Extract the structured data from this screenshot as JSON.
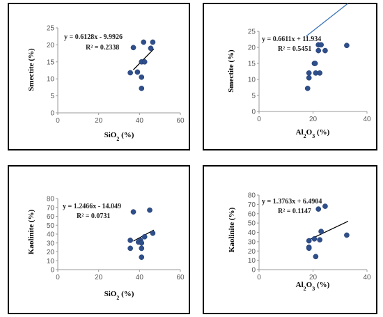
{
  "colors": {
    "marker_primary": "#3b6ab5",
    "marker_dark": "#1f3a6e",
    "trend_blue": "#3a73b8",
    "trend_black": "#000000"
  },
  "chart_data": [
    {
      "type": "scatter",
      "ylabel": "Smectite (%)",
      "xlabel": "SiO2 (%)",
      "xlim": [
        0,
        60
      ],
      "xticks": [
        0,
        20,
        40,
        60
      ],
      "ylim": [
        0,
        25
      ],
      "yticks": [
        0,
        5,
        10,
        15,
        20,
        25
      ],
      "trendline": {
        "slope": 0.6128,
        "intercept": -9.9926,
        "x_range": [
          37,
          47
        ]
      },
      "equation": "y = 0.6128x - 9.9926",
      "r2": "R² = 0.2338",
      "points": [
        [
          37,
          19.2
        ],
        [
          42,
          20.8
        ],
        [
          46.5,
          20.8
        ],
        [
          45.5,
          19
        ],
        [
          41,
          15
        ],
        [
          42.5,
          15
        ],
        [
          39,
          12
        ],
        [
          35.5,
          11.8
        ],
        [
          41,
          10.5
        ],
        [
          41,
          7.2
        ]
      ]
    },
    {
      "type": "scatter",
      "ylabel": "Smectite (%)",
      "xlabel": "Al2O3 (%)",
      "xlim": [
        0,
        40
      ],
      "xticks": [
        0,
        20,
        40
      ],
      "ylim": [
        0,
        25
      ],
      "yticks": [
        0,
        5,
        10,
        15,
        20,
        25
      ],
      "trendline": {
        "slope": 0.6611,
        "intercept": 11.934,
        "x_range": [
          17.5,
          33
        ]
      },
      "equation": "y = 0.6611x + 11.934",
      "r2": "R² = 0.5451",
      "points": [
        [
          22,
          20.8
        ],
        [
          23,
          20.8
        ],
        [
          32.5,
          20.6
        ],
        [
          24.5,
          19
        ],
        [
          22,
          19
        ],
        [
          20.5,
          15
        ],
        [
          20.8,
          15
        ],
        [
          18.5,
          12
        ],
        [
          21,
          12
        ],
        [
          22.5,
          12
        ],
        [
          18.5,
          10.5
        ],
        [
          18,
          7.2
        ]
      ]
    },
    {
      "type": "scatter",
      "ylabel": "Kaolinite (%)",
      "xlabel": "SiO2 (%)",
      "xlim": [
        0,
        60
      ],
      "xticks": [
        0,
        20,
        40,
        60
      ],
      "ylim": [
        0,
        80
      ],
      "yticks": [
        0,
        10,
        20,
        30,
        40,
        50,
        60,
        70,
        80
      ],
      "trendline": {
        "slope": 1.2466,
        "intercept": -14.049,
        "x_range": [
          37,
          47
        ]
      },
      "equation": "y = 1.2466x - 14.049",
      "r2": "R² = 0.0731",
      "points": [
        [
          37,
          65
        ],
        [
          45,
          67
        ],
        [
          46.5,
          41
        ],
        [
          42.5,
          37
        ],
        [
          40.5,
          33
        ],
        [
          35.5,
          33
        ],
        [
          39.5,
          31
        ],
        [
          41,
          30
        ],
        [
          35.5,
          24
        ],
        [
          41,
          24
        ],
        [
          41,
          14
        ]
      ]
    },
    {
      "type": "scatter",
      "ylabel": "Kaolinite (%)",
      "xlabel": "Al2O3 (%)",
      "xlim": [
        0,
        40
      ],
      "xticks": [
        0,
        20,
        40
      ],
      "ylim": [
        0,
        80
      ],
      "yticks": [
        0,
        10,
        20,
        30,
        40,
        50,
        60,
        70,
        80
      ],
      "trendline": {
        "slope": 1.3763,
        "intercept": 6.4904,
        "x_range": [
          18,
          33
        ]
      },
      "equation": "y = 1.3763x + 6.4904",
      "r2": "R² = 0.1147",
      "points": [
        [
          22,
          65
        ],
        [
          24.5,
          68
        ],
        [
          23,
          41
        ],
        [
          32.5,
          37
        ],
        [
          20.5,
          33
        ],
        [
          18.5,
          31
        ],
        [
          22.5,
          32
        ],
        [
          18.5,
          24
        ],
        [
          18.5,
          23
        ],
        [
          21,
          14
        ]
      ]
    }
  ]
}
